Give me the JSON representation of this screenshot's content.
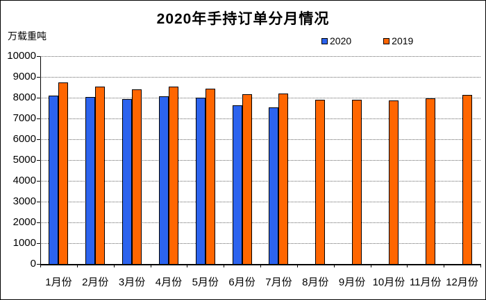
{
  "title": "2020年手持订单分月情况",
  "y_axis_unit": "万载重吨",
  "colors": {
    "series_2020": "#2c63ee",
    "series_2019": "#ff6600",
    "grid": "#666666",
    "axis": "#000000"
  },
  "chart_data": {
    "type": "bar",
    "title": "2020年手持订单分月情况",
    "xlabel": "",
    "ylabel": "万载重吨",
    "categories": [
      "1月份",
      "2月份",
      "3月份",
      "4月份",
      "5月份",
      "6月份",
      "7月份",
      "8月份",
      "9月份",
      "10月份",
      "11月份",
      "12月份"
    ],
    "series": [
      {
        "name": "2020",
        "color": "#2c63ee",
        "values": [
          8100,
          8030,
          7950,
          8060,
          7990,
          7650,
          7540,
          null,
          null,
          null,
          null,
          null
        ]
      },
      {
        "name": "2019",
        "color": "#ff6600",
        "values": [
          8720,
          8520,
          8390,
          8540,
          8440,
          8170,
          8210,
          7890,
          7890,
          7860,
          7960,
          8140
        ]
      }
    ],
    "ylim": [
      0,
      10000
    ],
    "ytick_step": 1000,
    "grid": "horizontal-dotted",
    "legend_position": "top-right"
  }
}
